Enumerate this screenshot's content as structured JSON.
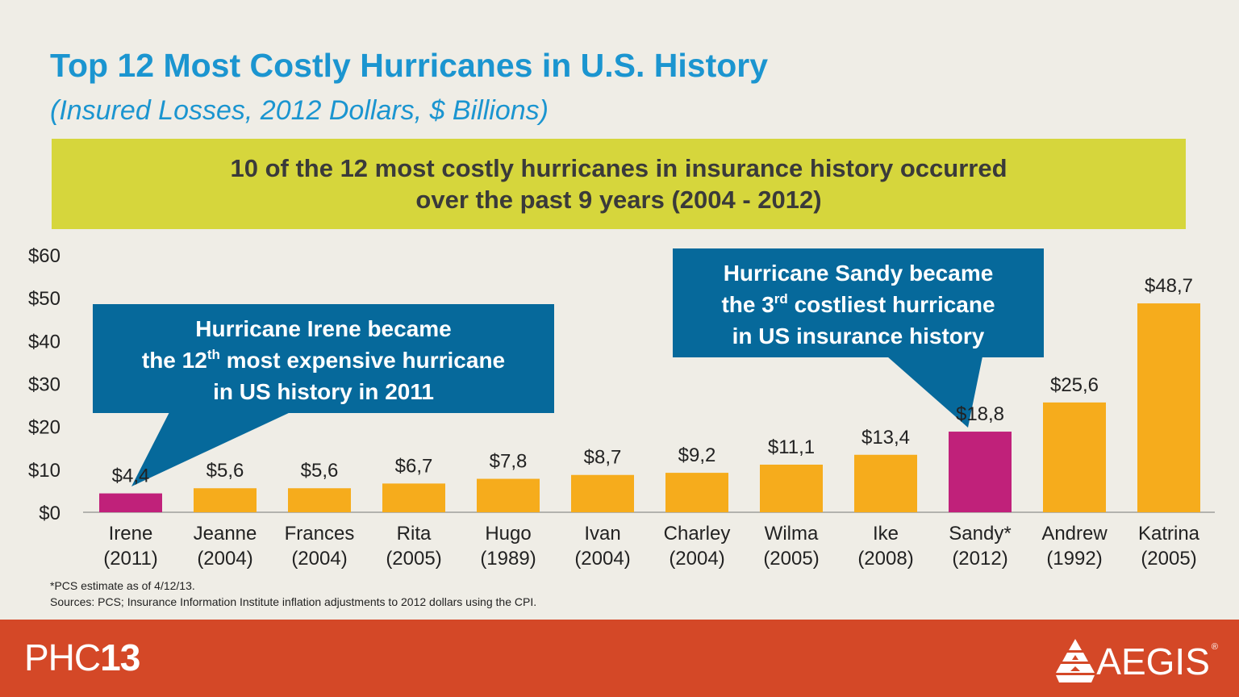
{
  "header": {
    "title": "Top 12 Most Costly Hurricanes in U.S. History",
    "subtitle": "(Insured Losses, 2012 Dollars, $ Billions)"
  },
  "banner": {
    "line1": "10 of the 12 most costly hurricanes in insurance history occurred",
    "line2": "over the past 9 years (2004 - 2012)"
  },
  "callouts": {
    "irene": {
      "line1": "Hurricane Irene became",
      "line2_pre": "the 12",
      "line2_sup": "th",
      "line2_post": " most expensive hurricane",
      "line3": "in US history in 2011"
    },
    "sandy": {
      "line1": "Hurricane Sandy became",
      "line2_pre": "the 3",
      "line2_sup": "rd",
      "line2_post": " costliest hurricane",
      "line3": "in US insurance history"
    }
  },
  "chart_data": {
    "type": "bar",
    "title": "Top 12 Most Costly Hurricanes in U.S. History",
    "subtitle": "(Insured Losses, 2012 Dollars, $ Billions)",
    "categories": [
      "Irene",
      "Jeanne",
      "Frances",
      "Rita",
      "Hugo",
      "Ivan",
      "Charley",
      "Wilma",
      "Ike",
      "Sandy*",
      "Andrew",
      "Katrina"
    ],
    "years": [
      "(2011)",
      "(2004)",
      "(2004)",
      "(2005)",
      "(1989)",
      "(2004)",
      "(2004)",
      "(2005)",
      "(2008)",
      "(2012)",
      "(1992)",
      "(2005)"
    ],
    "values": [
      4.4,
      5.6,
      5.6,
      6.7,
      7.8,
      8.7,
      9.2,
      11.1,
      13.4,
      18.8,
      25.6,
      48.7
    ],
    "value_labels": [
      "$4,4",
      "$5,6",
      "$5,6",
      "$6,7",
      "$7,8",
      "$8,7",
      "$9,2",
      "$11,1",
      "$13,4",
      "$18,8",
      "$25,6",
      "$48,7"
    ],
    "highlight": [
      true,
      false,
      false,
      false,
      false,
      false,
      false,
      false,
      false,
      true,
      false,
      false
    ],
    "yticks": [
      0,
      10,
      20,
      30,
      40,
      50,
      60
    ],
    "ytick_labels": [
      "$0",
      "$10",
      "$20",
      "$30",
      "$40",
      "$50",
      "$60"
    ],
    "ylim": [
      0,
      60
    ],
    "grid": false,
    "colors": {
      "default": "#f6ac1c",
      "highlight": "#c0217a",
      "callout": "#06699b"
    }
  },
  "footnotes": {
    "note": "*PCS  estimate as of 4/12/13.",
    "sources": "Sources: PCS; Insurance Information Institute inflation adjustments to 2012 dollars using the CPI."
  },
  "footer": {
    "left_brand_light": "PHC",
    "left_brand_bold": "13",
    "right_brand": "AEGIS",
    "right_brand_mark": "®"
  }
}
